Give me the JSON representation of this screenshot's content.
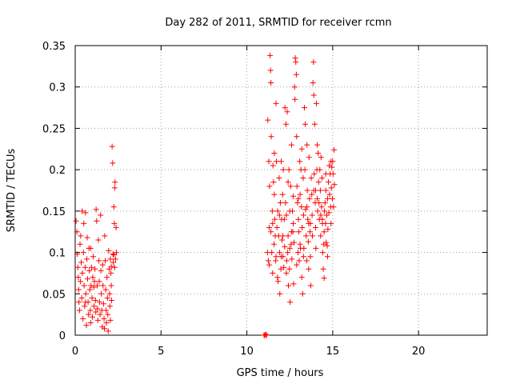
{
  "chart_data": {
    "type": "scatter",
    "title": "Day 282 of 2011, SRMTID for receiver rcmn",
    "xlabel": "GPS time / hours",
    "ylabel": "SRMTID / TECUs",
    "xlim": [
      0,
      24
    ],
    "ylim": [
      0,
      0.35
    ],
    "xticks": [
      0,
      5,
      10,
      15,
      20
    ],
    "xtick_labels": [
      "0",
      "5",
      "10",
      "15",
      "20"
    ],
    "yticks": [
      0,
      0.05,
      0.1,
      0.15,
      0.2,
      0.25,
      0.3,
      0.35
    ],
    "ytick_labels": [
      "0",
      "0.05",
      "0.1",
      "0.15",
      "0.2",
      "0.25",
      "0.3",
      "0.35"
    ],
    "grid": true,
    "marker": "plus",
    "color": "#ff0000",
    "series": [
      {
        "name": "SRMTID",
        "points": [
          [
            0.05,
            0.138
          ],
          [
            0.1,
            0.125
          ],
          [
            0.12,
            0.098
          ],
          [
            0.15,
            0.082
          ],
          [
            0.18,
            0.07
          ],
          [
            0.2,
            0.055
          ],
          [
            0.22,
            0.04
          ],
          [
            0.25,
            0.03
          ],
          [
            0.28,
            0.11
          ],
          [
            0.3,
            0.065
          ],
          [
            0.32,
            0.12
          ],
          [
            0.35,
            0.088
          ],
          [
            0.38,
            0.045
          ],
          [
            0.4,
            0.15
          ],
          [
            0.42,
            0.075
          ],
          [
            0.45,
            0.02
          ],
          [
            0.48,
            0.1
          ],
          [
            0.5,
            0.135
          ],
          [
            0.52,
            0.06
          ],
          [
            0.55,
            0.035
          ],
          [
            0.58,
            0.082
          ],
          [
            0.6,
            0.148
          ],
          [
            0.62,
            0.05
          ],
          [
            0.65,
            0.012
          ],
          [
            0.68,
            0.092
          ],
          [
            0.7,
            0.118
          ],
          [
            0.72,
            0.068
          ],
          [
            0.75,
            0.04
          ],
          [
            0.78,
            0.025
          ],
          [
            0.8,
            0.105
          ],
          [
            0.82,
            0.078
          ],
          [
            0.85,
            0.055
          ],
          [
            0.88,
            0.03
          ],
          [
            0.9,
            0.015
          ],
          [
            0.92,
            0.06
          ],
          [
            0.95,
            0.082
          ],
          [
            0.98,
            0.045
          ],
          [
            1.0,
            0.022
          ],
          [
            1.02,
            0.07
          ],
          [
            1.05,
            0.095
          ],
          [
            1.08,
            0.058
          ],
          [
            1.1,
            0.035
          ],
          [
            1.12,
            0.065
          ],
          [
            1.15,
            0.08
          ],
          [
            1.18,
            0.042
          ],
          [
            1.2,
            0.028
          ],
          [
            1.22,
            0.152
          ],
          [
            1.25,
            0.138
          ],
          [
            1.28,
            0.06
          ],
          [
            1.3,
            0.032
          ],
          [
            1.32,
            0.018
          ],
          [
            1.35,
            0.115
          ],
          [
            1.38,
            0.09
          ],
          [
            1.4,
            0.065
          ],
          [
            1.42,
            0.04
          ],
          [
            1.45,
            0.025
          ],
          [
            1.48,
            0.145
          ],
          [
            1.5,
            0.078
          ],
          [
            1.52,
            0.05
          ],
          [
            1.55,
            0.03
          ],
          [
            1.58,
            0.01
          ],
          [
            1.6,
            0.085
          ],
          [
            1.62,
            0.06
          ],
          [
            1.65,
            0.038
          ],
          [
            1.68,
            0.02
          ],
          [
            1.7,
            0.008
          ],
          [
            1.72,
            0.12
          ],
          [
            1.75,
            0.09
          ],
          [
            1.78,
            0.055
          ],
          [
            1.8,
            0.03
          ],
          [
            1.82,
            0.015
          ],
          [
            1.85,
            0.07
          ],
          [
            1.88,
            0.045
          ],
          [
            1.9,
            0.025
          ],
          [
            1.92,
            0.005
          ],
          [
            1.95,
            0.102
          ],
          [
            1.98,
            0.08
          ],
          [
            2.0,
            0.05
          ],
          [
            2.02,
            0.035
          ],
          [
            2.05,
            0.018
          ],
          [
            2.08,
            0.075
          ],
          [
            2.1,
            0.06
          ],
          [
            2.12,
            0.042
          ],
          [
            2.15,
            0.228
          ],
          [
            2.18,
            0.208
          ],
          [
            2.2,
            0.098
          ],
          [
            2.22,
            0.088
          ],
          [
            2.25,
            0.155
          ],
          [
            2.28,
            0.135
          ],
          [
            2.3,
            0.178
          ],
          [
            2.32,
            0.185
          ],
          [
            2.35,
            0.092
          ],
          [
            2.38,
            0.13
          ],
          [
            2.4,
            0.1
          ],
          [
            2.05,
            0.092
          ],
          [
            2.1,
            0.083
          ],
          [
            2.25,
            0.097
          ],
          [
            2.3,
            0.082
          ],
          [
            0.6,
            0.04
          ],
          [
            0.9,
            0.105
          ],
          [
            11.0,
            0.0
          ],
          [
            11.05,
            0.0
          ],
          [
            11.1,
            0.001
          ],
          [
            11.15,
            0.0
          ],
          [
            11.2,
            0.1
          ],
          [
            11.22,
            0.26
          ],
          [
            11.25,
            0.09
          ],
          [
            11.28,
            0.21
          ],
          [
            11.3,
            0.13
          ],
          [
            11.32,
            0.18
          ],
          [
            11.35,
            0.338
          ],
          [
            11.38,
            0.32
          ],
          [
            11.4,
            0.305
          ],
          [
            11.42,
            0.24
          ],
          [
            11.45,
            0.1
          ],
          [
            11.48,
            0.15
          ],
          [
            11.5,
            0.075
          ],
          [
            11.52,
            0.205
          ],
          [
            11.55,
            0.185
          ],
          [
            11.58,
            0.11
          ],
          [
            11.6,
            0.22
          ],
          [
            11.62,
            0.14
          ],
          [
            11.65,
            0.12
          ],
          [
            11.68,
            0.09
          ],
          [
            11.7,
            0.28
          ],
          [
            11.72,
            0.21
          ],
          [
            11.75,
            0.13
          ],
          [
            11.78,
            0.07
          ],
          [
            11.8,
            0.15
          ],
          [
            11.82,
            0.065
          ],
          [
            11.85,
            0.12
          ],
          [
            11.88,
            0.19
          ],
          [
            11.9,
            0.1
          ],
          [
            11.92,
            0.05
          ],
          [
            11.95,
            0.16
          ],
          [
            11.98,
            0.08
          ],
          [
            12.0,
            0.21
          ],
          [
            12.02,
            0.14
          ],
          [
            12.05,
            0.115
          ],
          [
            12.08,
            0.17
          ],
          [
            12.1,
            0.095
          ],
          [
            12.12,
            0.2
          ],
          [
            12.15,
            0.082
          ],
          [
            12.18,
            0.14
          ],
          [
            12.2,
            0.107
          ],
          [
            12.22,
            0.275
          ],
          [
            12.25,
            0.16
          ],
          [
            12.28,
            0.255
          ],
          [
            12.3,
            0.145
          ],
          [
            12.32,
            0.09
          ],
          [
            12.35,
            0.27
          ],
          [
            12.38,
            0.1
          ],
          [
            12.4,
            0.12
          ],
          [
            12.42,
            0.06
          ],
          [
            12.45,
            0.2
          ],
          [
            12.48,
            0.08
          ],
          [
            12.5,
            0.15
          ],
          [
            12.52,
            0.04
          ],
          [
            12.55,
            0.18
          ],
          [
            12.58,
            0.11
          ],
          [
            12.6,
            0.23
          ],
          [
            12.62,
            0.092
          ],
          [
            12.65,
            0.15
          ],
          [
            12.68,
            0.125
          ],
          [
            12.7,
            0.168
          ],
          [
            12.72,
            0.062
          ],
          [
            12.75,
            0.112
          ],
          [
            12.78,
            0.3
          ],
          [
            12.8,
            0.285
          ],
          [
            12.82,
            0.335
          ],
          [
            12.85,
            0.33
          ],
          [
            12.88,
            0.315
          ],
          [
            12.9,
            0.24
          ],
          [
            12.92,
            0.18
          ],
          [
            12.95,
            0.16
          ],
          [
            12.98,
            0.1
          ],
          [
            13.0,
            0.14
          ],
          [
            13.02,
            0.125
          ],
          [
            13.05,
            0.09
          ],
          [
            13.08,
            0.21
          ],
          [
            13.1,
            0.17
          ],
          [
            13.12,
            0.105
          ],
          [
            13.15,
            0.2
          ],
          [
            13.18,
            0.155
          ],
          [
            13.2,
            0.07
          ],
          [
            13.22,
            0.13
          ],
          [
            13.25,
            0.05
          ],
          [
            13.28,
            0.19
          ],
          [
            13.3,
            0.145
          ],
          [
            13.32,
            0.105
          ],
          [
            13.35,
            0.275
          ],
          [
            13.38,
            0.2
          ],
          [
            13.4,
            0.255
          ],
          [
            13.42,
            0.152
          ],
          [
            13.45,
            0.12
          ],
          [
            13.48,
            0.09
          ],
          [
            13.5,
            0.23
          ],
          [
            13.52,
            0.175
          ],
          [
            13.55,
            0.14
          ],
          [
            13.58,
            0.113
          ],
          [
            13.6,
            0.08
          ],
          [
            13.62,
            0.215
          ],
          [
            13.65,
            0.165
          ],
          [
            13.68,
            0.125
          ],
          [
            13.7,
            0.095
          ],
          [
            13.72,
            0.06
          ],
          [
            13.75,
            0.19
          ],
          [
            13.78,
            0.17
          ],
          [
            13.8,
            0.145
          ],
          [
            13.82,
            0.12
          ],
          [
            13.85,
            0.305
          ],
          [
            13.88,
            0.33
          ],
          [
            13.9,
            0.29
          ],
          [
            13.92,
            0.195
          ],
          [
            13.95,
            0.255
          ],
          [
            13.98,
            0.16
          ],
          [
            14.0,
            0.13
          ],
          [
            14.02,
            0.105
          ],
          [
            14.05,
            0.28
          ],
          [
            14.08,
            0.2
          ],
          [
            14.1,
            0.23
          ],
          [
            14.12,
            0.15
          ],
          [
            14.15,
            0.22
          ],
          [
            14.18,
            0.185
          ],
          [
            14.2,
            0.16
          ],
          [
            14.22,
            0.14
          ],
          [
            14.25,
            0.2
          ],
          [
            14.28,
            0.175
          ],
          [
            14.3,
            0.12
          ],
          [
            14.32,
            0.215
          ],
          [
            14.35,
            0.155
          ],
          [
            14.38,
            0.19
          ],
          [
            14.4,
            0.14
          ],
          [
            14.42,
            0.1
          ],
          [
            14.45,
            0.08
          ],
          [
            14.48,
            0.11
          ],
          [
            14.5,
            0.069
          ],
          [
            14.52,
            0.15
          ],
          [
            14.55,
            0.16
          ],
          [
            14.58,
            0.135
          ],
          [
            14.6,
            0.195
          ],
          [
            14.62,
            0.112
          ],
          [
            14.65,
            0.145
          ],
          [
            14.68,
            0.108
          ],
          [
            14.7,
            0.165
          ],
          [
            14.72,
            0.128
          ],
          [
            14.75,
            0.185
          ],
          [
            14.78,
            0.148
          ],
          [
            14.8,
            0.205
          ],
          [
            14.82,
            0.17
          ],
          [
            14.85,
            0.195
          ],
          [
            14.88,
            0.155
          ],
          [
            14.9,
            0.21
          ],
          [
            14.92,
            0.178
          ],
          [
            14.95,
            0.203
          ],
          [
            14.98,
            0.165
          ],
          [
            15.0,
            0.21
          ],
          [
            15.02,
            0.195
          ],
          [
            15.05,
            0.155
          ],
          [
            15.08,
            0.224
          ],
          [
            15.1,
            0.182
          ],
          [
            11.3,
            0.085
          ],
          [
            11.5,
            0.135
          ],
          [
            11.7,
            0.095
          ],
          [
            11.9,
            0.145
          ],
          [
            12.1,
            0.12
          ],
          [
            12.3,
            0.075
          ],
          [
            12.5,
            0.105
          ],
          [
            12.7,
            0.135
          ],
          [
            12.9,
            0.085
          ],
          [
            13.1,
            0.11
          ],
          [
            13.3,
            0.095
          ],
          [
            13.5,
            0.155
          ],
          [
            13.7,
            0.135
          ],
          [
            13.9,
            0.175
          ],
          [
            14.1,
            0.165
          ],
          [
            14.3,
            0.145
          ],
          [
            14.5,
            0.125
          ],
          [
            14.7,
            0.095
          ],
          [
            14.9,
            0.135
          ],
          [
            11.6,
            0.17
          ],
          [
            12.4,
            0.185
          ],
          [
            13.2,
            0.225
          ],
          [
            14.0,
            0.175
          ],
          [
            14.6,
            0.175
          ],
          [
            11.4,
            0.125
          ],
          [
            12.6,
            0.125
          ],
          [
            13.6,
            0.135
          ],
          [
            14.4,
            0.135
          ],
          [
            12.0,
            0.095
          ],
          [
            13.0,
            0.165
          ]
        ]
      }
    ]
  }
}
